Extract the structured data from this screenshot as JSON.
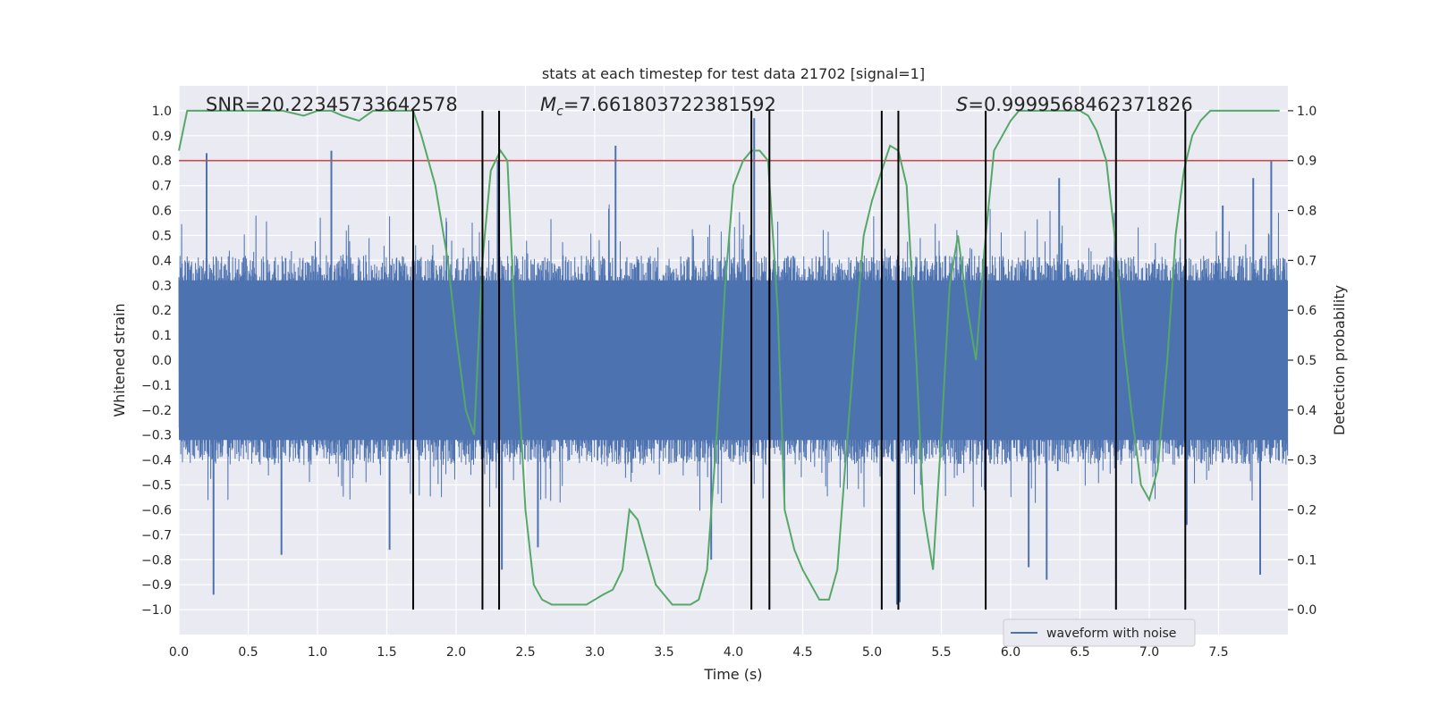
{
  "chart_data": {
    "type": "line",
    "title": "stats at each timestep for test data 21702 [signal=1]",
    "xlabel": "Time (s)",
    "ylabel_left": "Whitened strain",
    "ylabel_right": "Detection probability",
    "xlim": [
      0,
      8
    ],
    "ylim_left": [
      -1.1,
      1.1
    ],
    "ylim_right": [
      -0.05,
      1.05
    ],
    "x_ticks": [
      0.0,
      0.5,
      1.0,
      1.5,
      2.0,
      2.5,
      3.0,
      3.5,
      4.0,
      4.5,
      5.0,
      5.5,
      6.0,
      6.5,
      7.0,
      7.5
    ],
    "x_tick_labels": [
      "0.0",
      "0.5",
      "1.0",
      "1.5",
      "2.0",
      "2.5",
      "3.0",
      "3.5",
      "4.0",
      "4.5",
      "5.0",
      "5.5",
      "6.0",
      "6.5",
      "7.0",
      "7.5"
    ],
    "y_left_ticks": [
      -1.0,
      -0.9,
      -0.8,
      -0.7,
      -0.6,
      -0.5,
      -0.4,
      -0.3,
      -0.2,
      -0.1,
      0.0,
      0.1,
      0.2,
      0.3,
      0.4,
      0.5,
      0.6,
      0.7,
      0.8,
      0.9,
      1.0
    ],
    "y_left_tick_labels": [
      "−1.0",
      "−0.9",
      "−0.8",
      "−0.7",
      "−0.6",
      "−0.5",
      "−0.4",
      "−0.3",
      "−0.2",
      "−0.1",
      "0.0",
      "0.1",
      "0.2",
      "0.3",
      "0.4",
      "0.5",
      "0.6",
      "0.7",
      "0.8",
      "0.9",
      "1.0"
    ],
    "y_right_ticks": [
      0.0,
      0.1,
      0.2,
      0.3,
      0.4,
      0.5,
      0.6,
      0.7,
      0.8,
      0.9,
      1.0
    ],
    "y_right_tick_labels": [
      "0.0",
      "0.1",
      "0.2",
      "0.3",
      "0.4",
      "0.5",
      "0.6",
      "0.7",
      "0.8",
      "0.9",
      "1.0"
    ],
    "annotations": {
      "snr": "SNR=20.22345733642578",
      "mc_symbol": "M",
      "mc_sub": "c",
      "mc_value": "=7.661803722381592",
      "s_symbol": "S",
      "s_value": "=0.9999568462371826"
    },
    "threshold_probability": 0.9,
    "event_markers_x": [
      1.69,
      2.19,
      2.31,
      4.13,
      4.26,
      5.07,
      5.19,
      5.82,
      6.76,
      7.26
    ],
    "legend": {
      "entries": [
        "waveform with noise"
      ],
      "placement": "lower-right"
    },
    "grid": true,
    "series": [
      {
        "name": "waveform with noise",
        "axis": "left",
        "color": "#4c72b0",
        "style": "dense noise",
        "envelope_typical": 0.42,
        "spikes": [
          {
            "x": 0.2,
            "y": 0.83
          },
          {
            "x": 0.25,
            "y": -0.94
          },
          {
            "x": 0.74,
            "y": -0.78
          },
          {
            "x": 1.1,
            "y": 0.84
          },
          {
            "x": 1.52,
            "y": -0.76
          },
          {
            "x": 2.3,
            "y": 0.8
          },
          {
            "x": 2.33,
            "y": -0.84
          },
          {
            "x": 2.59,
            "y": -0.75
          },
          {
            "x": 3.15,
            "y": 0.86
          },
          {
            "x": 3.84,
            "y": -0.8
          },
          {
            "x": 4.15,
            "y": 0.97
          },
          {
            "x": 5.18,
            "y": -0.98
          },
          {
            "x": 5.2,
            "y": -0.97
          },
          {
            "x": 6.13,
            "y": -0.83
          },
          {
            "x": 6.26,
            "y": -0.88
          },
          {
            "x": 6.35,
            "y": 0.73
          },
          {
            "x": 7.27,
            "y": -0.66
          },
          {
            "x": 7.53,
            "y": 0.62
          },
          {
            "x": 7.75,
            "y": 0.73
          },
          {
            "x": 7.8,
            "y": -0.86
          },
          {
            "x": 7.88,
            "y": 0.8
          }
        ]
      },
      {
        "name": "",
        "axis": "right",
        "color": "#55a868",
        "x": [
          0.0,
          0.06,
          0.13,
          0.25,
          0.5,
          0.75,
          0.9,
          1.0,
          1.1,
          1.18,
          1.3,
          1.4,
          1.5,
          1.6,
          1.69,
          1.75,
          1.85,
          1.94,
          2.0,
          2.07,
          2.13,
          2.19,
          2.25,
          2.32,
          2.37,
          2.42,
          2.5,
          2.56,
          2.62,
          2.69,
          2.75,
          2.81,
          2.87,
          2.94,
          3.0,
          3.06,
          3.13,
          3.2,
          3.25,
          3.31,
          3.37,
          3.44,
          3.5,
          3.56,
          3.62,
          3.69,
          3.75,
          3.81,
          3.88,
          3.94,
          4.0,
          4.07,
          4.13,
          4.19,
          4.25,
          4.32,
          4.37,
          4.44,
          4.5,
          4.56,
          4.62,
          4.69,
          4.75,
          4.81,
          4.88,
          4.94,
          5.0,
          5.07,
          5.13,
          5.19,
          5.25,
          5.32,
          5.37,
          5.44,
          5.5,
          5.56,
          5.62,
          5.69,
          5.75,
          5.81,
          5.88,
          5.94,
          6.0,
          6.06,
          6.13,
          6.19,
          6.25,
          6.31,
          6.37,
          6.44,
          6.5,
          6.56,
          6.62,
          6.69,
          6.75,
          6.81,
          6.87,
          6.94,
          7.0,
          7.06,
          7.13,
          7.19,
          7.25,
          7.31,
          7.37,
          7.44,
          7.5,
          7.62,
          7.75,
          7.88,
          7.94
        ],
        "values": [
          0.92,
          1.0,
          1.0,
          1.0,
          1.0,
          1.0,
          0.99,
          1.0,
          1.0,
          0.99,
          0.98,
          1.0,
          1.0,
          1.0,
          1.0,
          0.95,
          0.85,
          0.7,
          0.55,
          0.4,
          0.35,
          0.7,
          0.88,
          0.92,
          0.9,
          0.6,
          0.2,
          0.05,
          0.02,
          0.01,
          0.01,
          0.01,
          0.01,
          0.01,
          0.02,
          0.03,
          0.04,
          0.08,
          0.2,
          0.18,
          0.12,
          0.05,
          0.03,
          0.01,
          0.01,
          0.01,
          0.02,
          0.08,
          0.35,
          0.65,
          0.85,
          0.9,
          0.92,
          0.92,
          0.9,
          0.6,
          0.2,
          0.12,
          0.08,
          0.05,
          0.02,
          0.02,
          0.08,
          0.3,
          0.55,
          0.75,
          0.82,
          0.88,
          0.93,
          0.92,
          0.85,
          0.5,
          0.2,
          0.08,
          0.35,
          0.65,
          0.75,
          0.6,
          0.5,
          0.72,
          0.92,
          0.95,
          0.98,
          1.0,
          1.0,
          1.0,
          1.0,
          1.0,
          1.0,
          1.0,
          1.0,
          0.99,
          0.96,
          0.9,
          0.75,
          0.55,
          0.4,
          0.25,
          0.22,
          0.28,
          0.5,
          0.75,
          0.88,
          0.95,
          0.98,
          1.0,
          1.0,
          1.0,
          1.0,
          1.0,
          1.0
        ]
      }
    ]
  }
}
